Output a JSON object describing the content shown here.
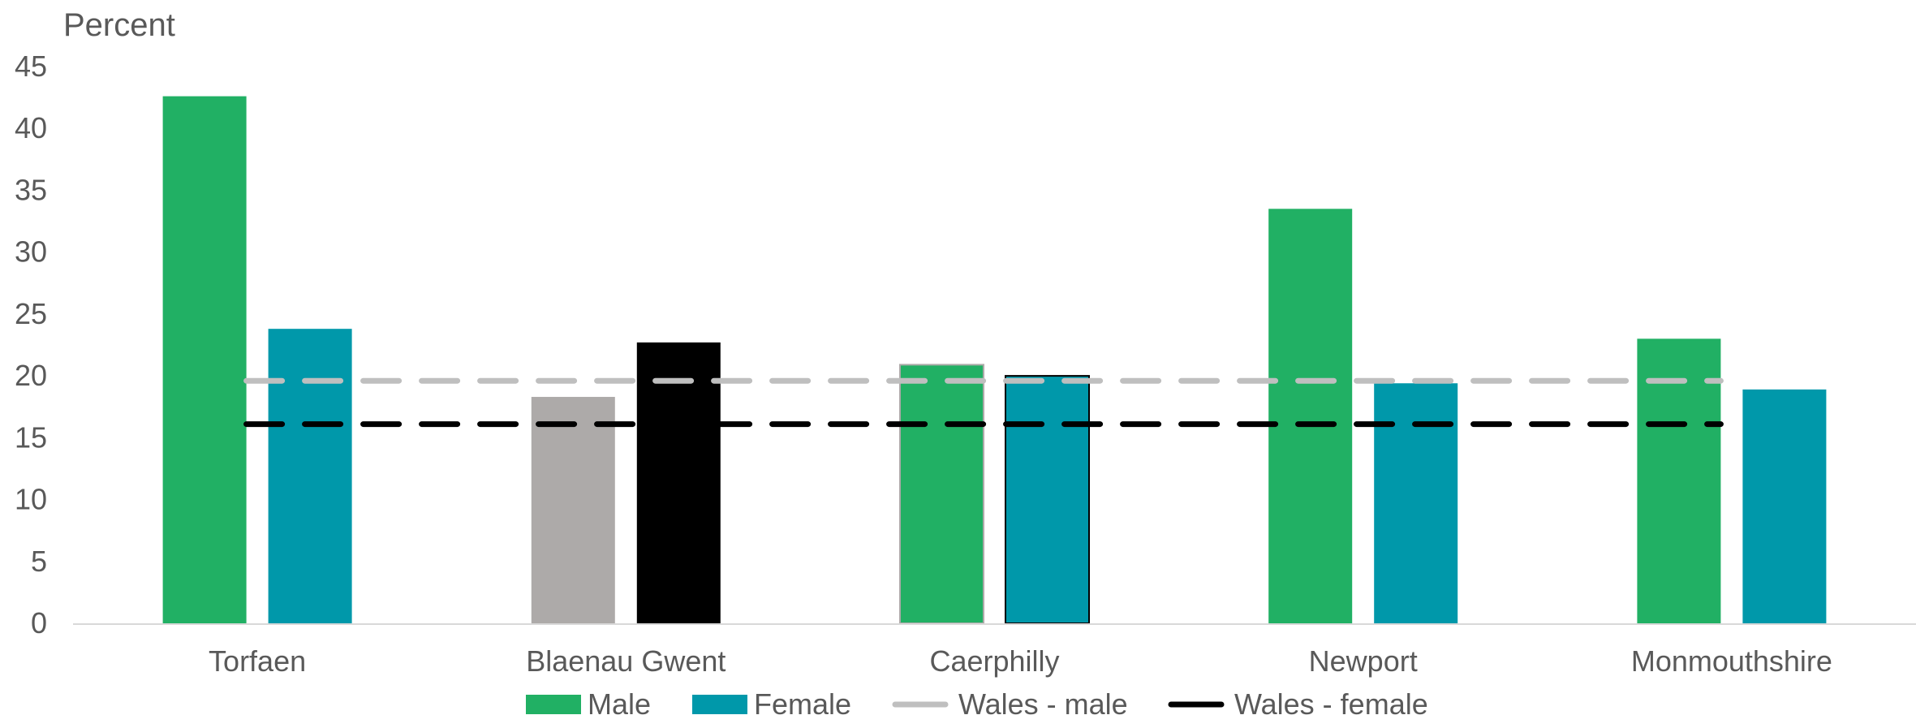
{
  "chart_data": {
    "type": "bar",
    "ylabel": "Percent",
    "xlabel": "",
    "ylim": [
      0,
      45
    ],
    "yticks": [
      "0",
      "5",
      "10",
      "15",
      "20",
      "25",
      "30",
      "35",
      "40",
      "45"
    ],
    "categories": [
      "Torfaen",
      "Blaenau Gwent",
      "Caerphilly",
      "Newport",
      "Monmouthshire"
    ],
    "series": [
      {
        "name": "Male",
        "values": [
          42.6,
          18.3,
          20.9,
          33.5,
          23.0
        ],
        "color": "#21B064",
        "point_colors": [
          "#21B064",
          "#ADAAA9",
          "#21B064",
          "#21B064",
          "#21B064"
        ]
      },
      {
        "name": "Female",
        "values": [
          23.8,
          22.7,
          20.0,
          19.4,
          18.9
        ],
        "color": "#0098AA",
        "point_colors": [
          "#0098AA",
          "#000000",
          "#0098AA",
          "#0098AA",
          "#0098AA"
        ]
      }
    ],
    "reference_lines": [
      {
        "name": "Wales - male",
        "value": 19.6,
        "color": "#BFBFBF",
        "style": "dashed"
      },
      {
        "name": "Wales - female",
        "value": 16.1,
        "color": "#000000",
        "style": "dashed"
      }
    ],
    "grid": false,
    "legend_position": "bottom"
  }
}
